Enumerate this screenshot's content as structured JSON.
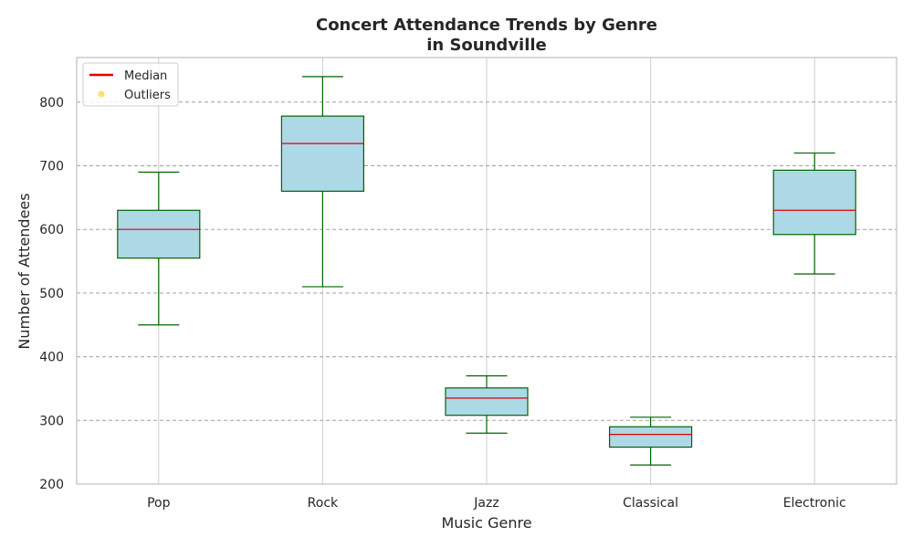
{
  "chart_data": {
    "type": "box",
    "title_lines": [
      "Concert Attendance Trends by Genre",
      "in Soundville"
    ],
    "xlabel": "Music Genre",
    "ylabel": "Number of Attendees",
    "ylim": [
      200,
      870
    ],
    "yticks": [
      200,
      300,
      400,
      500,
      600,
      700,
      800
    ],
    "grid": "y dashed, x solid",
    "legend": {
      "placement": "top-left",
      "entries": [
        {
          "label": "Median",
          "color": "#e00000",
          "kind": "line"
        },
        {
          "label": "Outliers",
          "color": "#ffe066",
          "kind": "dot"
        }
      ]
    },
    "colors": {
      "box_fill": "#add8e6",
      "box_edge": "#006400",
      "median": "#e00000",
      "whisker": "#006400"
    },
    "categories": [
      "Pop",
      "Rock",
      "Jazz",
      "Classical",
      "Electronic"
    ],
    "boxes": [
      {
        "name": "Pop",
        "min": 450,
        "q1": 555,
        "median": 600,
        "q3": 630,
        "max": 690
      },
      {
        "name": "Rock",
        "min": 510,
        "q1": 660,
        "median": 735,
        "q3": 778,
        "max": 840
      },
      {
        "name": "Jazz",
        "min": 280,
        "q1": 308,
        "median": 335,
        "q3": 351,
        "max": 370
      },
      {
        "name": "Classical",
        "min": 230,
        "q1": 258,
        "median": 278,
        "q3": 290,
        "max": 305
      },
      {
        "name": "Electronic",
        "min": 530,
        "q1": 592,
        "median": 630,
        "q3": 693,
        "max": 720
      }
    ]
  }
}
